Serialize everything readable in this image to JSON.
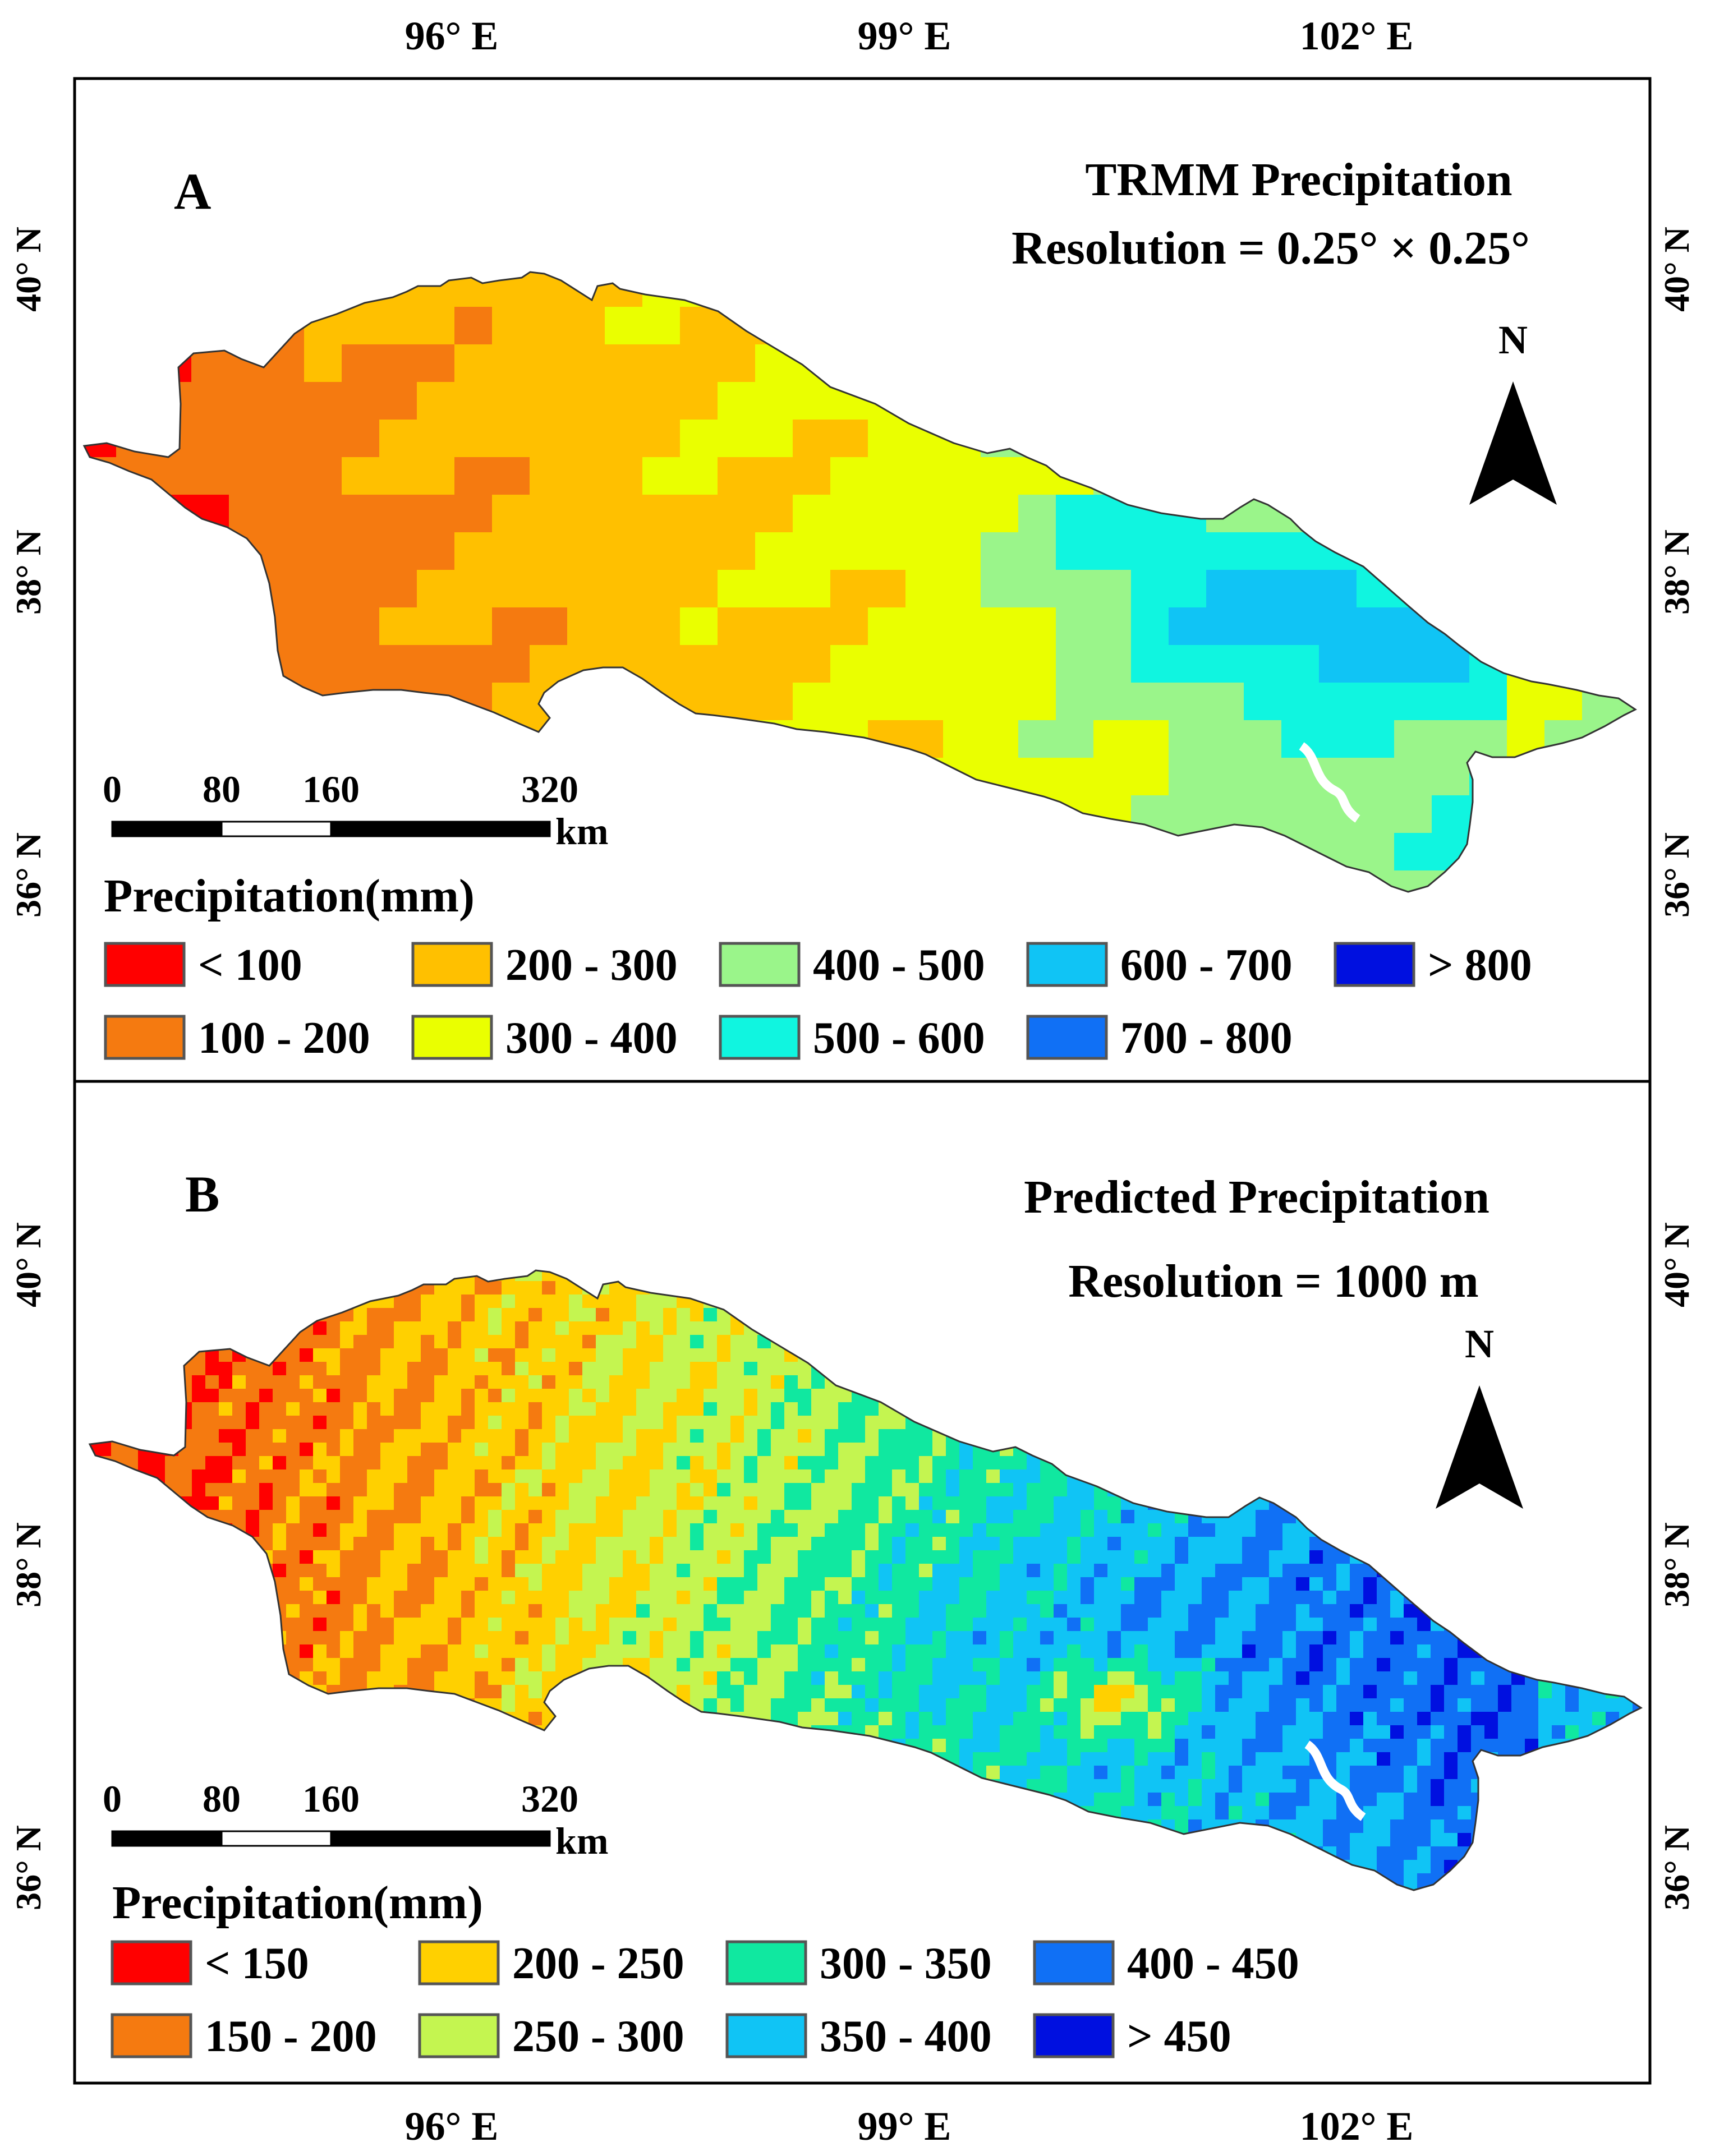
{
  "axes": {
    "x_ticks": [
      "96° E",
      "99° E",
      "102° E"
    ],
    "y_ticks": [
      "40° N",
      "38° N",
      "36° N"
    ]
  },
  "panel_a": {
    "label": "A",
    "title": "TRMM Precipitation",
    "resolution": "Resolution = 0.25° × 0.25°",
    "north": "N",
    "scale_ticks": [
      "0",
      "80",
      "160",
      "320"
    ],
    "scale_unit": "km",
    "legend_title": "Precipitation(mm)",
    "legend": [
      {
        "label": "< 100",
        "color": "#ff0000"
      },
      {
        "label": "100 - 200",
        "color": "#f57a10"
      },
      {
        "label": "200 - 300",
        "color": "#ffc000"
      },
      {
        "label": "300 - 400",
        "color": "#eaff00"
      },
      {
        "label": "400 - 500",
        "color": "#9af58a"
      },
      {
        "label": "500 - 600",
        "color": "#10f5e0"
      },
      {
        "label": "600 - 700",
        "color": "#10c4f5"
      },
      {
        "label": "700 - 800",
        "color": "#1070f5"
      },
      {
        "label": "> 800",
        "color": "#0010e0"
      }
    ]
  },
  "panel_b": {
    "label": "B",
    "title": "Predicted Precipitation",
    "resolution": "Resolution = 1000 m",
    "north": "N",
    "scale_ticks": [
      "0",
      "80",
      "160",
      "320"
    ],
    "scale_unit": "km",
    "legend_title": "Precipitation(mm)",
    "legend": [
      {
        "label": "< 150",
        "color": "#ff0000"
      },
      {
        "label": "150 - 200",
        "color": "#f57a10"
      },
      {
        "label": "200 - 250",
        "color": "#ffd000"
      },
      {
        "label": "250 - 300",
        "color": "#c4f550"
      },
      {
        "label": "300 - 350",
        "color": "#10e8a0"
      },
      {
        "label": "350 - 400",
        "color": "#10c4f5"
      },
      {
        "label": "400 - 450",
        "color": "#1070f5"
      },
      {
        "label": "> 450",
        "color": "#0010e0"
      }
    ]
  }
}
